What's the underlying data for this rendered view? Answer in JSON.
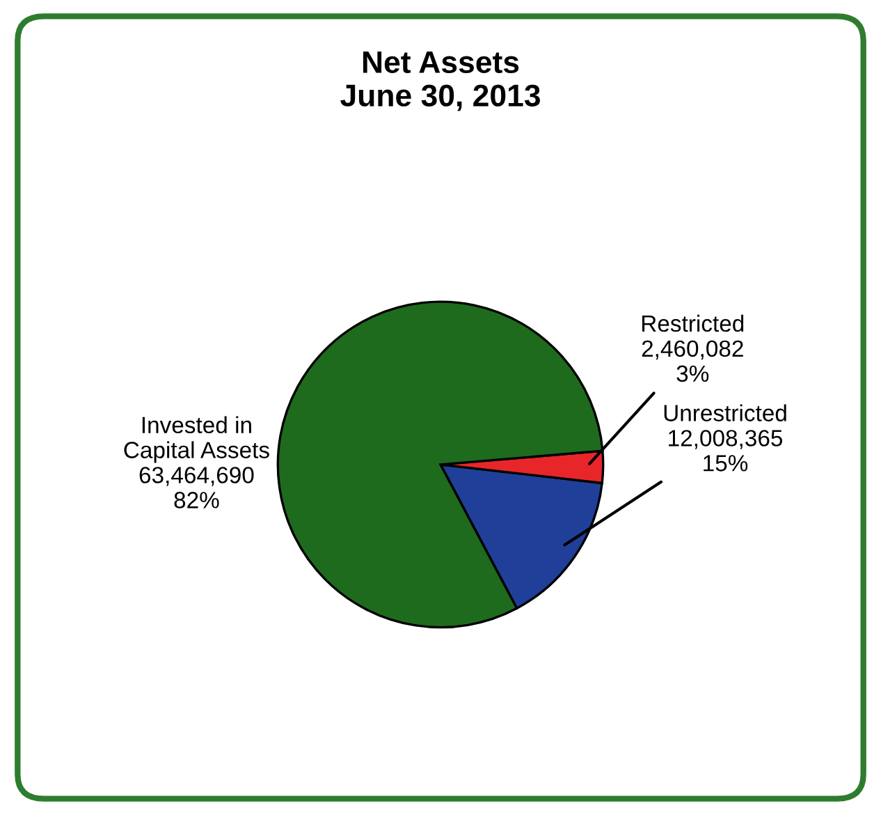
{
  "chart_data": {
    "type": "pie",
    "title": "Net Assets\nJune 30, 2013",
    "categories": [
      "Unrestricted",
      "Restricted",
      "Invested in\nCapital Assets"
    ],
    "values": [
      12008365,
      2460082,
      63464690
    ],
    "value_labels": [
      "12,008,365\n15%",
      "2,460,082\n3%",
      "63,464,690\n82%"
    ],
    "colors": [
      "#1f3f99",
      "#e8262a",
      "#1e6b1e"
    ]
  }
}
